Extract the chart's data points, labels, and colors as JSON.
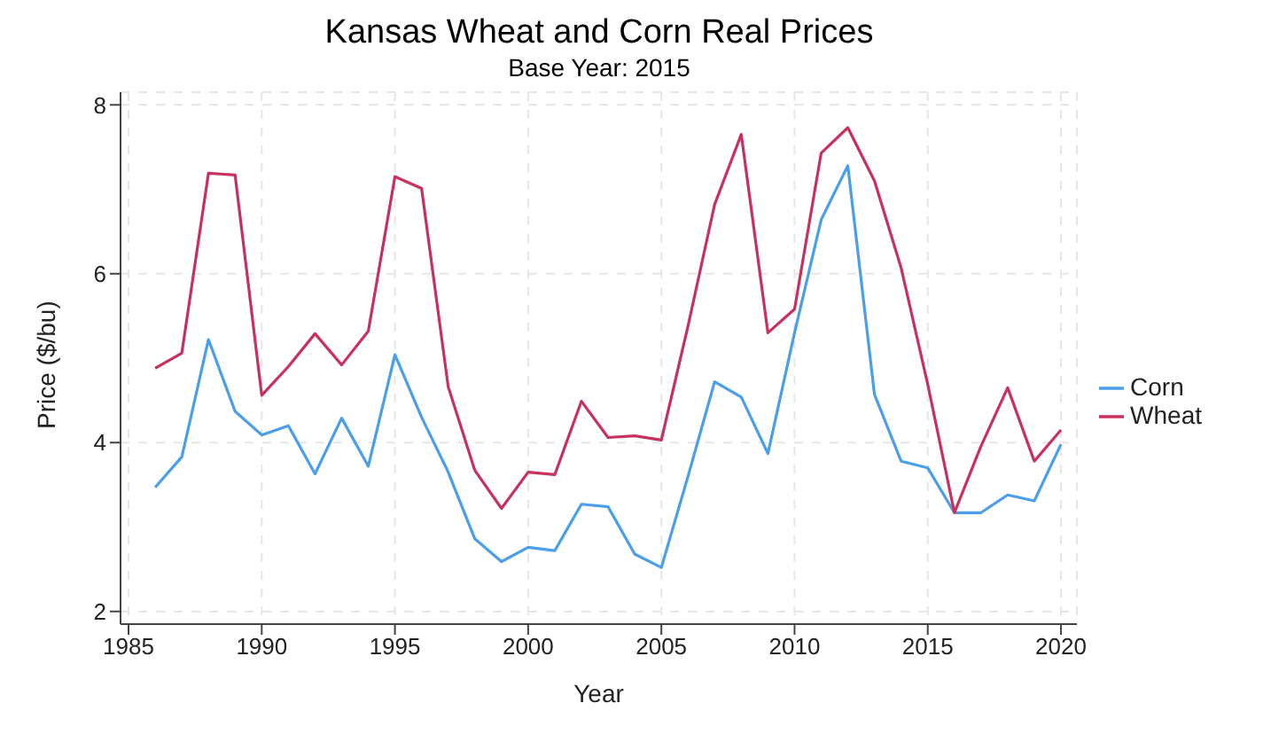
{
  "chart_data": {
    "type": "line",
    "title": "Kansas Wheat and Corn Real Prices",
    "subtitle": "Base Year: 2015",
    "xlabel": "Year",
    "ylabel": "Price ($/bu)",
    "x": [
      1986,
      1987,
      1988,
      1989,
      1990,
      1991,
      1992,
      1993,
      1994,
      1995,
      1996,
      1997,
      1998,
      1999,
      2000,
      2001,
      2002,
      2003,
      2004,
      2005,
      2006,
      2007,
      2008,
      2009,
      2010,
      2011,
      2012,
      2013,
      2014,
      2015,
      2016,
      2017,
      2018,
      2019,
      2020
    ],
    "series": [
      {
        "name": "Corn",
        "color": "#4a9eea",
        "values": [
          3.47,
          3.83,
          5.22,
          4.37,
          4.09,
          4.2,
          3.63,
          4.29,
          3.72,
          5.04,
          4.3,
          3.65,
          2.86,
          2.59,
          2.76,
          2.72,
          3.27,
          3.24,
          2.68,
          2.52,
          3.6,
          4.72,
          4.54,
          3.87,
          5.3,
          6.64,
          7.28,
          4.57,
          3.78,
          3.7,
          3.17,
          3.17,
          3.38,
          3.31,
          3.98
        ]
      },
      {
        "name": "Wheat",
        "color": "#c8305e",
        "values": [
          4.88,
          5.06,
          7.19,
          7.17,
          4.56,
          4.9,
          5.29,
          4.92,
          5.32,
          7.15,
          7.01,
          4.66,
          3.67,
          3.22,
          3.65,
          3.62,
          4.49,
          4.06,
          4.08,
          4.03,
          5.38,
          6.82,
          7.65,
          5.3,
          5.58,
          7.43,
          7.73,
          7.1,
          6.07,
          4.69,
          3.17,
          3.96,
          4.65,
          3.78,
          4.15
        ]
      }
    ],
    "xlim": [
      1984.7,
      2020.6
    ],
    "xticks": [
      1985,
      1990,
      1995,
      2000,
      2005,
      2010,
      2015,
      2020
    ],
    "ylim": [
      1.85,
      8.15
    ],
    "yticks": [
      2,
      4,
      6,
      8
    ],
    "grid": true,
    "legend": "right",
    "marker": "none",
    "line_style": "solid"
  }
}
